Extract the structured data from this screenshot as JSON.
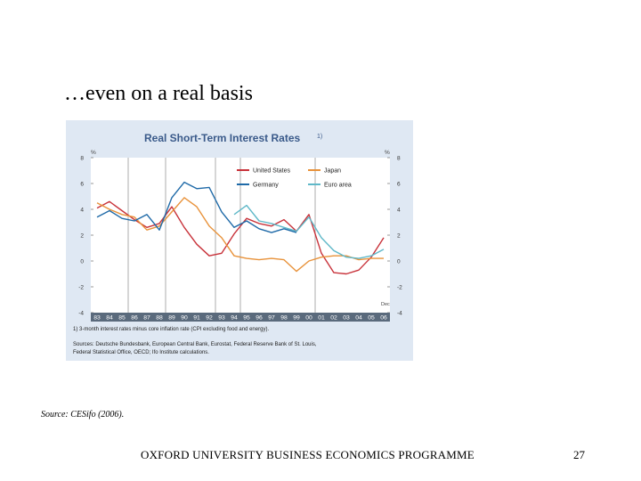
{
  "slide": {
    "title": "…even on a real basis",
    "source": "Source: CESifo (2006).",
    "footer": "OXFORD UNIVERSITY BUSINESS ECONOMICS PROGRAMME",
    "page_number": "27"
  },
  "chart_data": {
    "type": "line",
    "title": "Real Short-Term Interest Rates",
    "title_footnote": "1)",
    "y_unit_left": "%",
    "y_unit_right": "%",
    "ylim": [
      -4,
      8
    ],
    "yticks": [
      "8",
      "6",
      "4",
      "2",
      "0",
      "-2",
      "-4"
    ],
    "x_ticks": [
      "83",
      "84",
      "85",
      "86",
      "87",
      "88",
      "89",
      "90",
      "91",
      "92",
      "93",
      "94",
      "95",
      "96",
      "97",
      "98",
      "99",
      "00",
      "01",
      "02",
      "03",
      "04",
      "05",
      "06"
    ],
    "x_end_label": "Dec",
    "vertical_guides": [
      "86",
      "89",
      "93",
      "95",
      "01"
    ],
    "legend_placement": "top-right",
    "grid": false,
    "series": [
      {
        "name": "United States",
        "color": "#c8323a",
        "x": [
          83,
          84,
          85,
          86,
          87,
          88,
          89,
          90,
          91,
          92,
          93,
          94,
          95,
          96,
          97,
          98,
          99,
          100,
          101,
          102,
          103,
          104,
          105,
          106
        ],
        "y": [
          4.1,
          4.6,
          3.9,
          3.2,
          2.6,
          2.9,
          4.2,
          2.6,
          1.3,
          0.4,
          0.6,
          2.1,
          3.3,
          2.9,
          2.7,
          3.2,
          2.3,
          3.6,
          0.6,
          -0.9,
          -1.0,
          -0.7,
          0.3,
          1.8
        ]
      },
      {
        "name": "Japan",
        "color": "#e8923a",
        "x": [
          83,
          84,
          85,
          86,
          87,
          88,
          89,
          90,
          91,
          92,
          93,
          94,
          95,
          96,
          97,
          98,
          99,
          100,
          101,
          102,
          103,
          104,
          105,
          106
        ],
        "y": [
          4.5,
          4.0,
          3.6,
          3.4,
          2.4,
          2.7,
          3.8,
          4.9,
          4.2,
          2.7,
          1.8,
          0.4,
          0.2,
          0.1,
          0.2,
          0.1,
          -0.8,
          0.0,
          0.3,
          0.4,
          0.4,
          0.1,
          0.2,
          0.2
        ]
      },
      {
        "name": "Germany",
        "color": "#1f6aa8",
        "x": [
          83,
          84,
          85,
          86,
          87,
          88,
          89,
          90,
          91,
          92,
          93,
          94,
          95,
          96,
          97,
          98,
          99
        ],
        "y": [
          3.4,
          3.9,
          3.3,
          3.1,
          3.6,
          2.4,
          4.9,
          6.1,
          5.6,
          5.7,
          3.8,
          2.6,
          3.1,
          2.5,
          2.2,
          2.5,
          2.2
        ]
      },
      {
        "name": "Euro area",
        "color": "#5fb8c8",
        "x": [
          94,
          95,
          96,
          97,
          98,
          99,
          100,
          101,
          102,
          103,
          104,
          105,
          106
        ],
        "y": [
          3.6,
          4.3,
          3.1,
          2.9,
          2.6,
          2.3,
          3.4,
          1.8,
          0.8,
          0.3,
          0.2,
          0.4,
          0.9
        ]
      }
    ],
    "footnotes": [
      "1) 3-month interest rates minus core inflation rate (CPI excluding food and energy).",
      "Sources: Deutsche Bundesbank, European Central Bank, Eurostat, Federal Reserve Bank of St. Louis,",
      "Federal Statistical Office, OECD; Ifo Institute calculations."
    ]
  }
}
